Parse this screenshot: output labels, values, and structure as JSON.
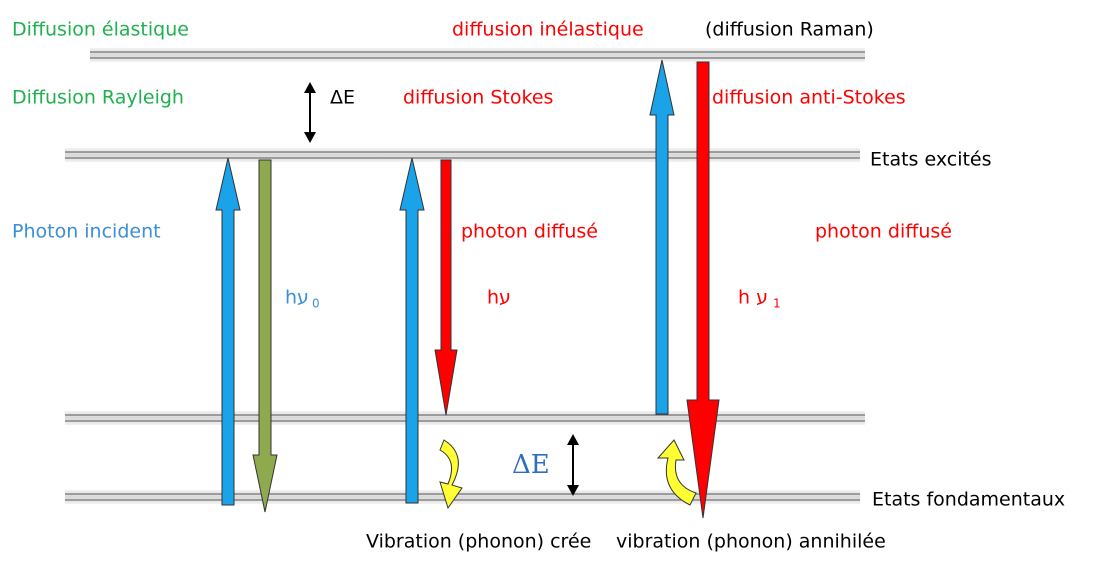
{
  "labels": {
    "elastic": "Diffusion élastique",
    "inelastic": "diffusion inélastique",
    "raman": "(diffusion Raman)",
    "rayleigh": "Diffusion Rayleigh",
    "delta_top": "ΔE",
    "stokes": "diffusion Stokes",
    "anti_stokes": "diffusion anti-Stokes",
    "excited": "Etats excités",
    "incident": "Photon incident",
    "scattered_stokes": "photon diffusé",
    "scattered_anti": "photon diffusé",
    "h_nu0": "hע",
    "h_nu0_sub": "0",
    "h_nu": "hע",
    "h_nu1": "h ע",
    "h_nu1_sub": "1",
    "delta_bottom": "ΔE",
    "ground": "Etats fondamentaux",
    "created": "Vibration (phonon) crée",
    "annihilated": "vibration (phonon) annihilée"
  }
}
